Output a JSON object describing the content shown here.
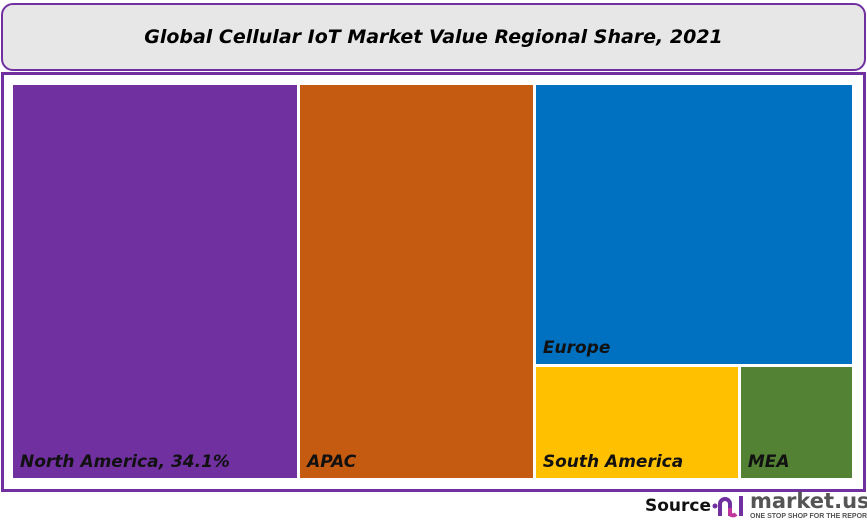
{
  "chart_data": {
    "type": "treemap",
    "title": "Global Cellular IoT Market Value Regional Share, 2021",
    "unit": "%",
    "items": [
      {
        "name": "North America",
        "label": "North America, 34.1%",
        "value": 34.1,
        "color": "#7030a0"
      },
      {
        "name": "APAC",
        "label": "APAC",
        "value": 28.0,
        "color": "#c55a11"
      },
      {
        "name": "Europe",
        "label": "Europe",
        "value": 27.0,
        "color": "#0070c0"
      },
      {
        "name": "South America",
        "label": "South America",
        "value": 7.0,
        "color": "#ffc000"
      },
      {
        "name": "MEA",
        "label": "MEA",
        "value": 3.9,
        "color": "#548235"
      }
    ]
  },
  "footer": {
    "source_label": "Source",
    "brand": "market.us",
    "tagline": "ONE STOP SHOP FOR THE REPORTS"
  },
  "colors": {
    "border": "#7030a0",
    "title_bg": "#e7e7e7"
  }
}
